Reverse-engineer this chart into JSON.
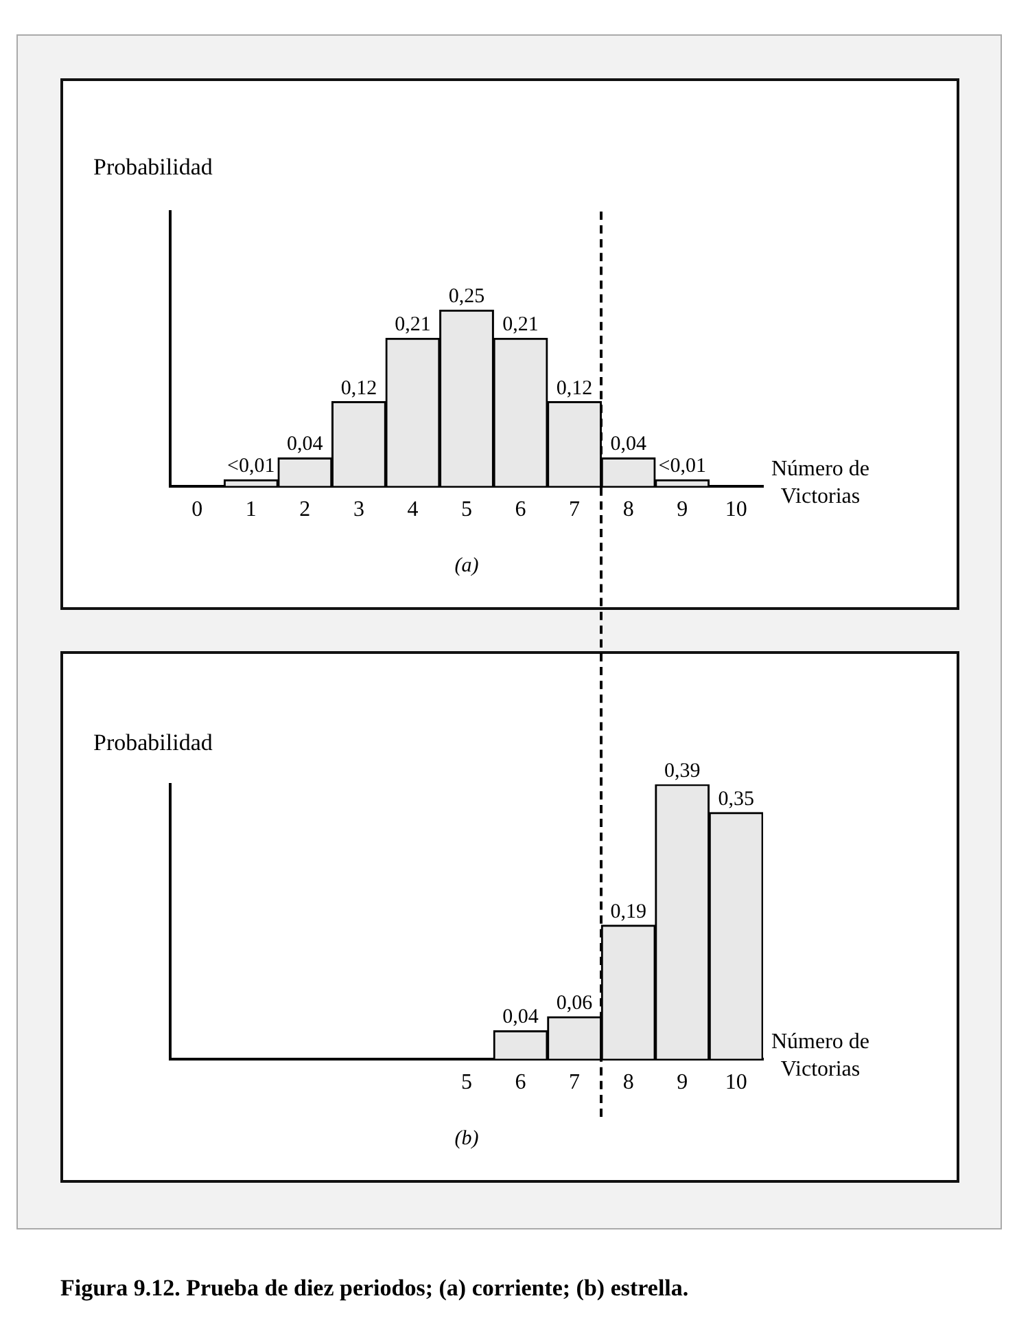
{
  "chart_data": [
    {
      "type": "bar",
      "ylabel": "Probabilidad",
      "xlabel": "Número de\nVictorias",
      "subtitle": "(a)",
      "categories": [
        "0",
        "1",
        "2",
        "3",
        "4",
        "5",
        "6",
        "7",
        "8",
        "9",
        "10"
      ],
      "values": [
        null,
        0.009,
        0.04,
        0.12,
        0.21,
        0.25,
        0.21,
        0.12,
        0.04,
        0.009,
        null
      ],
      "value_labels": [
        null,
        "<0,01",
        "0,04",
        "0,12",
        "0,21",
        "0,25",
        "0,21",
        "0,12",
        "0,04",
        "<0,01",
        null
      ],
      "color": "#e8e8e8",
      "tick_labels": "x"
    },
    {
      "type": "bar",
      "ylabel": "Probabilidad",
      "xlabel": "Número de\nVictorias",
      "subtitle": "(b)",
      "categories": [
        null,
        null,
        null,
        null,
        null,
        "5",
        "6",
        "7",
        "8",
        "9",
        "10"
      ],
      "values": [
        null,
        null,
        null,
        null,
        null,
        null,
        0.04,
        0.06,
        0.19,
        0.39,
        0.35
      ],
      "value_labels": [
        null,
        null,
        null,
        null,
        null,
        null,
        "0,04",
        "0,06",
        "0,19",
        "0,39",
        "0,35"
      ],
      "color": "#e8e8e8",
      "tick_labels": "x",
      "annotations": [
        "Figura 9.12. Prueba de diez periodos; (a) corriente; (b) estrella."
      ]
    }
  ]
}
